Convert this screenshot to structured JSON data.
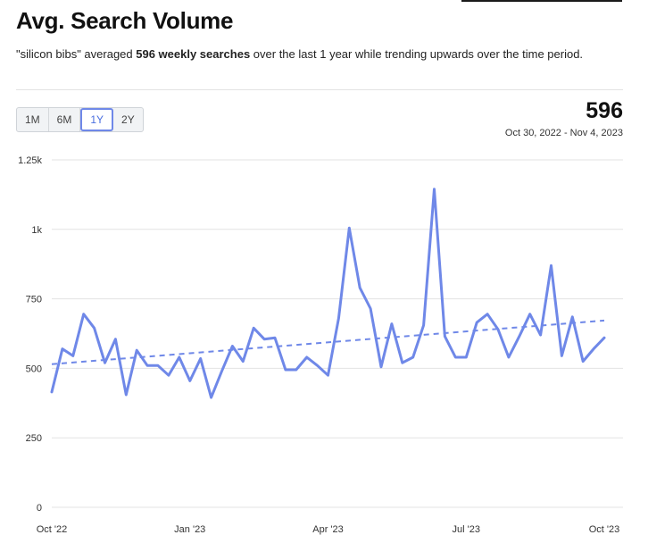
{
  "header": {
    "title": "Avg. Search Volume",
    "desc_prefix": "\"silicon bibs\" averaged ",
    "desc_bold": "596 weekly searches",
    "desc_suffix": " over the last 1 year while trending upwards over the time period."
  },
  "ranges": [
    {
      "label": "1M",
      "active": false
    },
    {
      "label": "6M",
      "active": false
    },
    {
      "label": "1Y",
      "active": true
    },
    {
      "label": "2Y",
      "active": false
    }
  ],
  "summary": {
    "value": "596",
    "date_range": "Oct 30, 2022 - Nov 4, 2023"
  },
  "colors": {
    "line": "#6f88e8",
    "trend": "#6f88e8",
    "grid": "#e3e3e3"
  },
  "chart_data": {
    "type": "line",
    "title": "",
    "xlabel": "",
    "ylabel": "",
    "ylim": [
      0,
      1250
    ],
    "y_ticks": [
      {
        "value": 0,
        "label": "0"
      },
      {
        "value": 250,
        "label": "250"
      },
      {
        "value": 500,
        "label": "500"
      },
      {
        "value": 750,
        "label": "750"
      },
      {
        "value": 1000,
        "label": "1k"
      },
      {
        "value": 1250,
        "label": "1.25k"
      }
    ],
    "x_ticks": [
      {
        "index": 0,
        "label": "Oct '22"
      },
      {
        "index": 13,
        "label": "Jan '23"
      },
      {
        "index": 26,
        "label": "Apr '23"
      },
      {
        "index": 39,
        "label": "Jul '23"
      },
      {
        "index": 52,
        "label": "Oct '23"
      }
    ],
    "grid": true,
    "series": [
      {
        "values": [
          415,
          570,
          545,
          695,
          645,
          520,
          605,
          405,
          565,
          510,
          510,
          475,
          540,
          455,
          535,
          395,
          490,
          580,
          525,
          645,
          605,
          610,
          495,
          495,
          540,
          510,
          475,
          680,
          1005,
          790,
          715,
          505,
          660,
          520,
          540,
          655,
          1145,
          615,
          540,
          540,
          665,
          695,
          640,
          540,
          615,
          695,
          620,
          870,
          545,
          685,
          525,
          570,
          610
        ]
      }
    ],
    "trend": {
      "style": "dashed",
      "start": 515,
      "end": 672
    }
  }
}
